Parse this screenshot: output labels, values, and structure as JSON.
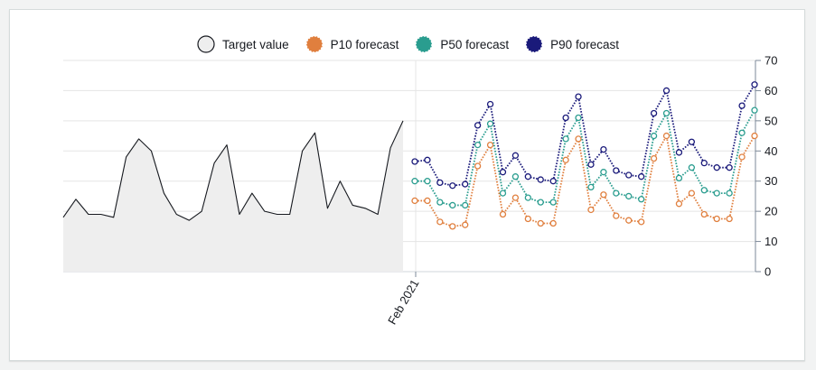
{
  "chart_data": {
    "type": "line",
    "x_tick_label": "Feb 2021",
    "y_ticks": [
      0,
      10,
      20,
      30,
      40,
      50,
      60,
      70
    ],
    "ylim": [
      0,
      70
    ],
    "grid": true,
    "legend_placement": "top-center",
    "history": {
      "name": "Target value",
      "color": "#16191f",
      "fill": "#eeeeee",
      "values": [
        18,
        24,
        19,
        19,
        18,
        38,
        44,
        40,
        26,
        19,
        17,
        20,
        36,
        42,
        19,
        26,
        20,
        19,
        19,
        40,
        46,
        21,
        30,
        22,
        21,
        19,
        41,
        50
      ]
    },
    "forecast_series": [
      {
        "name": "P10 forecast",
        "color": "#e07f3e",
        "values": [
          23.5,
          23.5,
          16.5,
          15,
          15.5,
          35,
          42,
          19,
          24.5,
          17.5,
          16,
          16,
          37,
          44,
          20.5,
          25.5,
          18.5,
          17,
          16.5,
          37.5,
          45,
          22.5,
          26,
          19,
          17.5,
          17.5,
          38,
          45
        ]
      },
      {
        "name": "P50 forecast",
        "color": "#2a9d8f",
        "values": [
          30,
          30,
          23,
          22,
          22,
          42,
          49,
          26,
          31.5,
          24.5,
          23,
          23,
          44,
          51,
          28,
          33,
          26,
          25,
          24,
          45,
          52.5,
          31,
          34.5,
          27,
          26,
          26,
          46,
          53.5
        ]
      },
      {
        "name": "P90 forecast",
        "color": "#1a1a7a",
        "values": [
          36.5,
          37,
          29.5,
          28.5,
          29,
          48.5,
          55.5,
          33,
          38.5,
          31.5,
          30.5,
          30,
          51,
          58,
          35.5,
          40.5,
          33.5,
          32,
          31.5,
          52.5,
          60,
          39.5,
          43,
          36,
          34.5,
          34.5,
          55,
          62
        ]
      }
    ]
  },
  "legend": {
    "target": "Target value",
    "p10": "P10 forecast",
    "p50": "P50 forecast",
    "p90": "P90 forecast"
  },
  "colors": {
    "grid": "#e5e5e5",
    "axis": "#7d8998",
    "text": "#16191f"
  }
}
